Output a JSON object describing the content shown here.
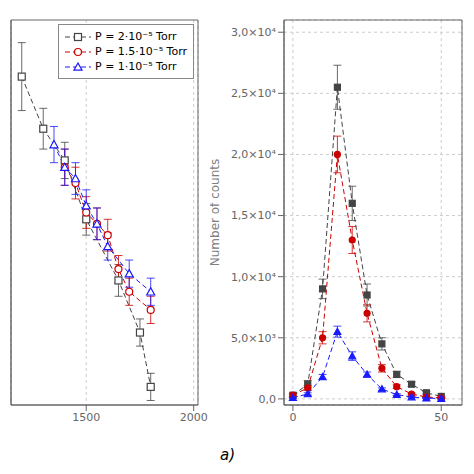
{
  "chart_data": [
    {
      "type": "line",
      "x": [
        1200,
        1300,
        1350,
        1400,
        1450,
        1500,
        1550,
        1600,
        1650,
        1700,
        1750,
        1800
      ],
      "series": [
        {
          "name": "P = 2·10⁻⁵ Torr",
          "color": "#444444",
          "marker": "square",
          "line_style": "dashed",
          "values": [
            19500,
            17200,
            null,
            15800,
            null,
            13200,
            null,
            null,
            10500,
            null,
            8200,
            5800
          ],
          "errors": [
            1500,
            900,
            null,
            800,
            null,
            700,
            null,
            null,
            700,
            null,
            600,
            600
          ]
        },
        {
          "name": "P = 1.5·10⁻⁵ Torr",
          "color": "#cc0000",
          "marker": "circle",
          "line_style": "dashed",
          "values": [
            null,
            null,
            null,
            15500,
            14800,
            13500,
            13000,
            12500,
            11000,
            10000,
            null,
            9200
          ],
          "errors": [
            null,
            null,
            null,
            800,
            700,
            700,
            700,
            700,
            600,
            600,
            null,
            600
          ]
        },
        {
          "name": "P = 1·10⁻⁵ Torr",
          "color": "#1a1aff",
          "marker": "triangle",
          "line_style": "dashed",
          "values": [
            null,
            null,
            16500,
            15500,
            15000,
            13800,
            13000,
            12000,
            null,
            10800,
            null,
            10000
          ],
          "errors": [
            null,
            null,
            800,
            800,
            700,
            700,
            700,
            600,
            null,
            600,
            null,
            600
          ]
        }
      ],
      "xlim": [
        1150,
        2020
      ],
      "ylim": [
        5000,
        22000
      ],
      "xticks": [
        1500,
        2000
      ],
      "yticks": [],
      "grid": true,
      "legend": "upper right",
      "tick_labels": "x",
      "annotation": "a)"
    },
    {
      "type": "line",
      "x": [
        0,
        5,
        10,
        15,
        20,
        25,
        30,
        35,
        40,
        45,
        50
      ],
      "series": [
        {
          "color": "#444444",
          "marker": "square",
          "line_style": "dashed",
          "values": [
            300,
            1200,
            9000,
            25500,
            16000,
            8500,
            4500,
            2000,
            1200,
            500,
            200
          ],
          "errors": [
            150,
            300,
            800,
            1800,
            1400,
            900,
            500,
            250,
            180,
            100,
            60
          ]
        },
        {
          "color": "#cc0000",
          "marker": "circle",
          "line_style": "dashed",
          "values": [
            300,
            900,
            5000,
            20000,
            13000,
            7000,
            2500,
            1000,
            400,
            150,
            80
          ],
          "errors": [
            100,
            200,
            500,
            1500,
            1100,
            700,
            300,
            150,
            80,
            50,
            30
          ]
        },
        {
          "color": "#1a1aff",
          "marker": "triangle",
          "line_style": "dashed",
          "values": [
            100,
            400,
            1800,
            5500,
            3500,
            2000,
            800,
            350,
            150,
            60,
            30
          ],
          "errors": [
            50,
            100,
            200,
            450,
            350,
            200,
            100,
            70,
            50,
            30,
            20
          ]
        }
      ],
      "xlim": [
        -3,
        57
      ],
      "ylim": [
        -500,
        31000
      ],
      "xticks": [
        0,
        50
      ],
      "yticks": [
        {
          "value": 0,
          "label": "0,0"
        },
        {
          "value": 5000,
          "label": "5,0×10³"
        },
        {
          "value": 10000,
          "label": "1,0×10⁴"
        },
        {
          "value": 15000,
          "label": "1,5×10⁴"
        },
        {
          "value": 20000,
          "label": "2,0×10⁴"
        },
        {
          "value": 25000,
          "label": "2,5×10⁴"
        },
        {
          "value": 30000,
          "label": "3,0×10⁴"
        }
      ],
      "ylabel": "Number of counts",
      "grid": true
    }
  ]
}
